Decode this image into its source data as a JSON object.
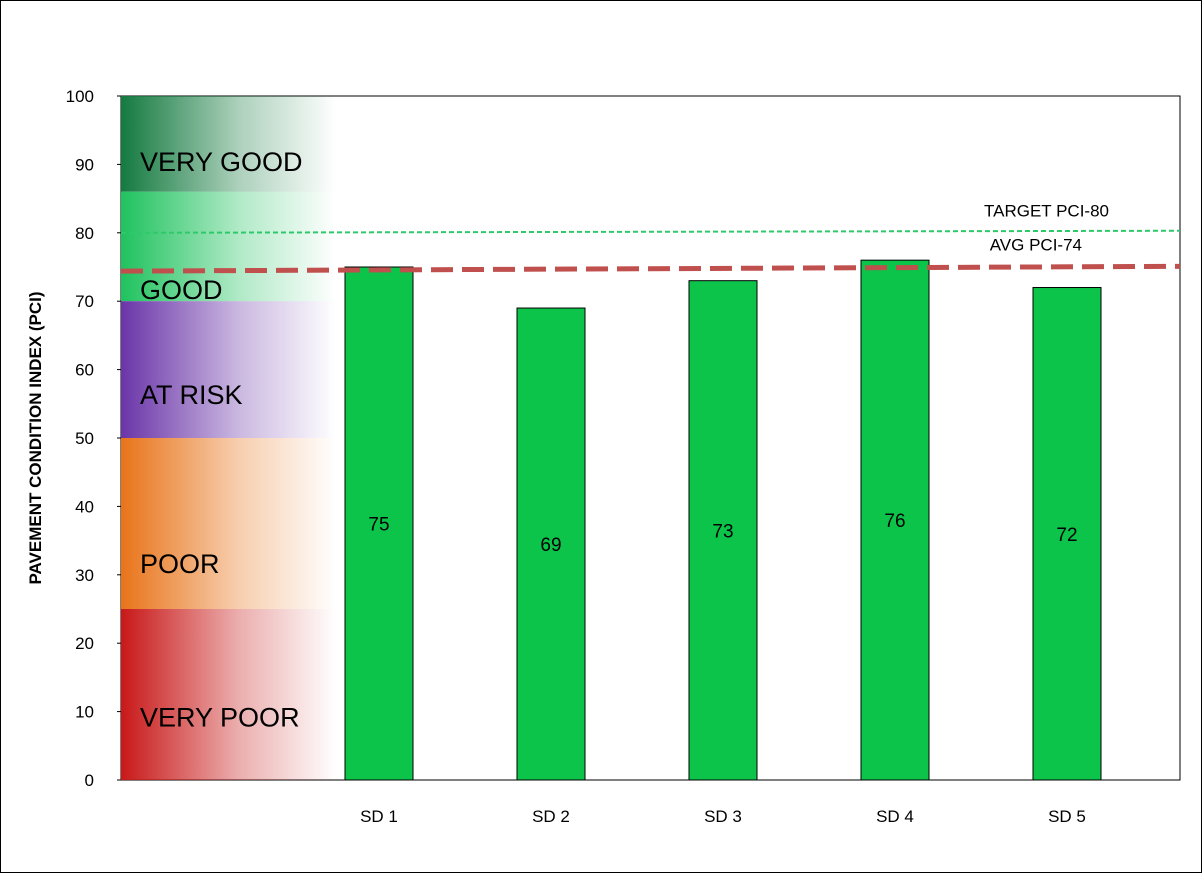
{
  "chart_data": {
    "type": "bar",
    "ylabel": "PAVEMENT CONDITION INDEX (PCI)",
    "xlabel": "",
    "ylim": [
      0,
      100
    ],
    "yticks": [
      "0",
      "10",
      "20",
      "30",
      "40",
      "50",
      "60",
      "70",
      "80",
      "90",
      "100"
    ],
    "categories": [
      "SD 1",
      "SD 2",
      "SD 3",
      "SD 4",
      "SD 5"
    ],
    "values": [
      75,
      69,
      73,
      76,
      72
    ],
    "data_labels": [
      "75",
      "69",
      "73",
      "76",
      "72"
    ],
    "bar_color": "#0cc44a",
    "grid": false,
    "condition_bands": [
      {
        "label": "VERY GOOD",
        "from": 86,
        "to": 100,
        "color": "#147a40"
      },
      {
        "label": "GOOD",
        "from": 70,
        "to": 86,
        "color": "#1fc25e"
      },
      {
        "label": "AT RISK",
        "from": 50,
        "to": 70,
        "color": "#6a35a8"
      },
      {
        "label": "POOR",
        "from": 25,
        "to": 50,
        "color": "#e8741a"
      },
      {
        "label": "VERY POOR",
        "from": 0,
        "to": 25,
        "color": "#c81818"
      }
    ],
    "reference_lines": [
      {
        "label": "TARGET PCI-80",
        "y_start": 80,
        "y_end": 80.3,
        "color": "#2ec96a",
        "style": "dotted"
      },
      {
        "label": "AVG PCI-74",
        "y_start": 74.4,
        "y_end": 75.1,
        "color": "#c0504d",
        "style": "dashed"
      }
    ]
  }
}
